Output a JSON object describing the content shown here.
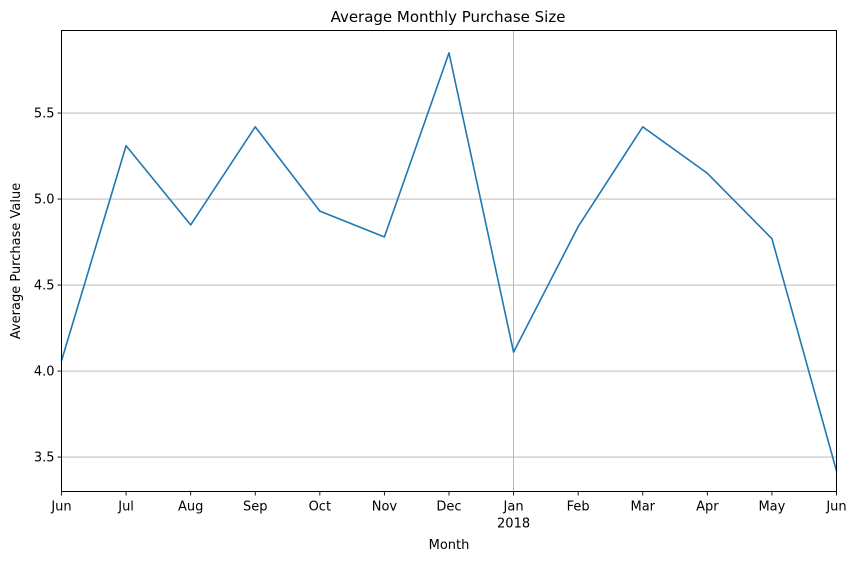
{
  "chart_data": {
    "type": "line",
    "title": "Average Monthly Purchase Size",
    "xlabel": "Month",
    "ylabel": "Average Purchase Value",
    "categories": [
      "Jun",
      "Jul",
      "Aug",
      "Sep",
      "Oct",
      "Nov",
      "Dec",
      "Jan",
      "Feb",
      "Mar",
      "Apr",
      "May",
      "Jun"
    ],
    "year_label": "2018",
    "year_label_under": "Jan",
    "series": [
      {
        "color": "#1f77b4",
        "values": [
          4.06,
          5.31,
          4.85,
          5.42,
          4.93,
          4.78,
          5.85,
          4.11,
          4.84,
          5.42,
          5.15,
          4.77,
          3.42
        ]
      }
    ],
    "ylim": [
      3.3,
      5.98
    ],
    "yticks": [
      3.5,
      4.0,
      4.5,
      5.0,
      5.5
    ],
    "ytick_labels": [
      "3.5",
      "4.0",
      "4.5",
      "5.0",
      "5.5"
    ],
    "grid": true,
    "vertical_grid_at": [
      "Jan"
    ],
    "legend": "none"
  }
}
